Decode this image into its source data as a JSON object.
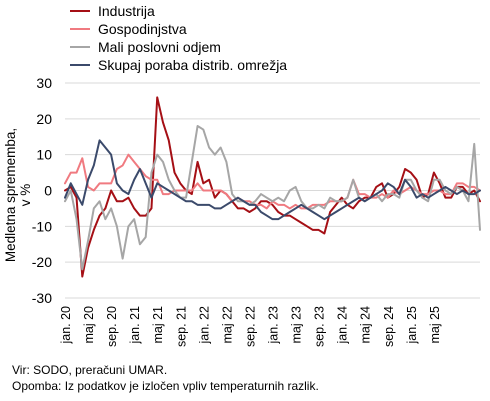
{
  "chart_data": {
    "type": "line",
    "ylabel": "Medletna sprememba, v %",
    "ylim": [
      -30,
      30
    ],
    "yticks": [
      -30,
      -20,
      -10,
      0,
      10,
      20,
      30
    ],
    "grid": true,
    "legend_position": "top-left",
    "x_start": "jan. 20",
    "x_tick_labels": [
      "jan. 20",
      "maj 20",
      "sep. 20",
      "jan. 21",
      "maj 21",
      "sep. 21",
      "jan. 22",
      "maj 22",
      "sep. 22",
      "jan. 23",
      "maj 23",
      "sep. 23",
      "jan. 24",
      "maj 24",
      "sep. 24",
      "jan. 25",
      "maj 25"
    ],
    "series": [
      {
        "name": "Industrija",
        "color": "#a50f15",
        "values": [
          0,
          1,
          -2,
          -24,
          -16,
          -11,
          -7,
          -5,
          0,
          -3,
          -3,
          -2,
          -5,
          -7,
          -7,
          -5,
          26,
          19,
          14,
          5,
          2,
          0,
          -1,
          8,
          2,
          3,
          -2,
          0,
          -1,
          -3,
          -5,
          -5,
          -6,
          -5,
          -3,
          -3,
          -4,
          -6,
          -7,
          -7,
          -8,
          -9,
          -10,
          -11,
          -11,
          -12,
          -6,
          -4,
          -2,
          -4,
          -5,
          -3,
          -2,
          -2,
          1,
          2,
          -2,
          -1,
          1,
          6,
          5,
          3,
          -2,
          -1,
          5,
          2,
          -2,
          -2,
          1,
          1,
          -1,
          0,
          -3
        ]
      },
      {
        "name": "Gospodinjstva",
        "color": "#f07a80",
        "values": [
          2,
          5,
          5,
          9,
          1,
          0,
          2,
          2,
          2,
          6,
          7,
          10,
          8,
          6,
          4,
          3,
          3,
          -1,
          -1,
          0,
          0,
          0,
          0,
          2,
          0,
          0,
          0,
          0,
          -1,
          -3,
          -2,
          -3,
          -3,
          -4,
          -4,
          -5,
          -3,
          -4,
          -4,
          -5,
          -4,
          -5,
          -5,
          -4,
          -4,
          -4,
          -3,
          -3,
          -3,
          -2,
          3,
          -1,
          -1,
          -2,
          -2,
          -1,
          -2,
          0,
          -1,
          0,
          1,
          0,
          -1,
          -1,
          0,
          0,
          -1,
          -1,
          2,
          2,
          1,
          1,
          0
        ]
      },
      {
        "name": "Mali poslovni odjem",
        "color": "#a6a6a6",
        "values": [
          -3,
          0,
          -8,
          -22,
          -14,
          -5,
          -3,
          -8,
          -5,
          -10,
          -19,
          -10,
          -8,
          -15,
          -13,
          5,
          10,
          8,
          3,
          0,
          -2,
          -2,
          8,
          18,
          17,
          12,
          10,
          12,
          8,
          -1,
          -3,
          -3,
          -4,
          -3,
          -1,
          -2,
          -3,
          -2,
          -3,
          0,
          1,
          -3,
          -5,
          -5,
          -4,
          -5,
          -2,
          -3,
          -3,
          -2,
          3,
          -2,
          -3,
          -2,
          -1,
          -3,
          -1,
          -1,
          -2,
          3,
          3,
          0,
          -2,
          -3,
          3,
          3,
          0,
          -1,
          1,
          0,
          -3,
          13,
          -11
        ]
      },
      {
        "name": "Skupaj poraba distrib. omrežja",
        "color": "#3b4a6b",
        "values": [
          -2,
          2,
          -1,
          -4,
          3,
          7,
          14,
          12,
          10,
          2,
          0,
          -1,
          3,
          6,
          2,
          -2,
          2,
          1,
          0,
          -1,
          -2,
          -3,
          -3,
          -4,
          -4,
          -4,
          -5,
          -5,
          -4,
          -3,
          -2,
          -3,
          -4,
          -4,
          -6,
          -7,
          -8,
          -8,
          -7,
          -6,
          -5,
          -4,
          -5,
          -6,
          -7,
          -8,
          -7,
          -6,
          -5,
          -4,
          -3,
          -2,
          -3,
          -2,
          -1,
          0,
          2,
          1,
          -1,
          3,
          1,
          -2,
          -1,
          -2,
          -1,
          0,
          1,
          0,
          -1,
          0,
          -1,
          -1,
          0
        ]
      }
    ]
  },
  "notes": {
    "source": "Vir: SODO, preračuni UMAR.",
    "remark": "Opomba: Iz podatkov je izločen vpliv temperaturnih razlik."
  }
}
